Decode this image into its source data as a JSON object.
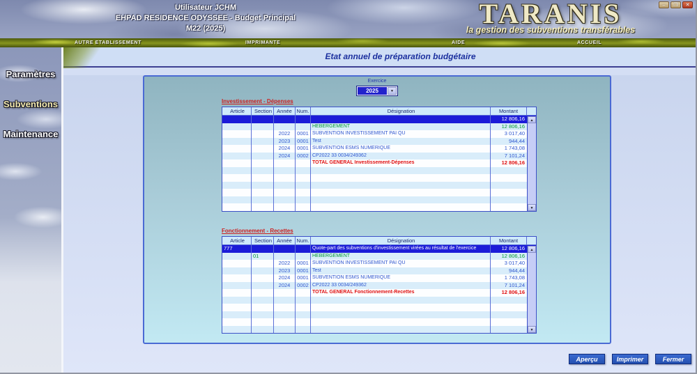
{
  "header": {
    "user": "Utilisateur JCHM",
    "establishment": "EHPAD RESIDENCE ODYSSEE - Budget Principal",
    "exercise_label": "M22 (2025)",
    "logo": "TARANIS",
    "logo_subtitle": "la gestion des subventions transférables",
    "window_controls": {
      "minimize": "–",
      "maximize": "❐",
      "close": "✕"
    }
  },
  "menu": {
    "items": [
      "AUTRE ETABLISSEMENT",
      "IMPRIMANTE",
      "AIDE",
      "ACCUEIL"
    ]
  },
  "sidebar": {
    "items": [
      "Paramètres",
      "Subventions",
      "Maintenance"
    ]
  },
  "page": {
    "title": "Etat annuel de préparation budgétaire"
  },
  "exercice": {
    "label": "Exercice",
    "value": "2025",
    "arrow": "▼"
  },
  "tables": [
    {
      "title": "Investissement - Dépenses",
      "columns": [
        "Article",
        "Section",
        "Année",
        "Num.",
        "Désignation",
        "Montant"
      ],
      "rows": [
        {
          "style": "sel",
          "article": "",
          "section": "",
          "annee": "",
          "num": "",
          "designation": "",
          "montant": "12 806,16"
        },
        {
          "style": "green",
          "article": "",
          "section": "",
          "annee": "",
          "num": "",
          "designation": "HEBERGEMENT",
          "montant": "12 806,16"
        },
        {
          "style": "",
          "article": "",
          "section": "",
          "annee": "2022",
          "num": "0001",
          "designation": "SUBVENTION INVESTISSEMENT PAI QU",
          "montant": "3 017,40"
        },
        {
          "style": "",
          "article": "",
          "section": "",
          "annee": "2023",
          "num": "0001",
          "designation": "Test",
          "montant": "944,44"
        },
        {
          "style": "",
          "article": "",
          "section": "",
          "annee": "2024",
          "num": "0001",
          "designation": "SUBVENTION ESMS NUMERIQUE",
          "montant": "1 743,08"
        },
        {
          "style": "",
          "article": "",
          "section": "",
          "annee": "2024",
          "num": "0002",
          "designation": "CP2022 33 0034/249362",
          "montant": "7 101,24"
        },
        {
          "style": "total",
          "article": "",
          "section": "",
          "annee": "",
          "num": "",
          "designation": "TOTAL GENERAL Investissement-Dépenses",
          "montant": "12 806,16"
        },
        {
          "style": "empty"
        },
        {
          "style": "empty"
        },
        {
          "style": "empty"
        },
        {
          "style": "empty"
        },
        {
          "style": "empty"
        },
        {
          "style": "empty"
        }
      ]
    },
    {
      "title": "Fonctionnement - Recettes",
      "columns": [
        "Article",
        "Section",
        "Année",
        "Num.",
        "Désignation",
        "Montant"
      ],
      "rows": [
        {
          "style": "sel",
          "article": "777",
          "section": "",
          "annee": "",
          "num": "",
          "designation": "Quote-part des subventions d'investissement virées au résultat de l'exercice",
          "montant": "12 806,16"
        },
        {
          "style": "green",
          "article": "",
          "section": "01",
          "annee": "",
          "num": "",
          "designation": "HEBERGEMENT",
          "montant": "12 806,16"
        },
        {
          "style": "",
          "article": "",
          "section": "",
          "annee": "2022",
          "num": "0001",
          "designation": "SUBVENTION INVESTISSEMENT PAI QU",
          "montant": "3 017,40"
        },
        {
          "style": "",
          "article": "",
          "section": "",
          "annee": "2023",
          "num": "0001",
          "designation": "Test",
          "montant": "944,44"
        },
        {
          "style": "",
          "article": "",
          "section": "",
          "annee": "2024",
          "num": "0001",
          "designation": "SUBVENTION ESMS NUMERIQUE",
          "montant": "1 743,08"
        },
        {
          "style": "",
          "article": "",
          "section": "",
          "annee": "2024",
          "num": "0002",
          "designation": "CP2022 33 0034/249362",
          "montant": "7 101,24"
        },
        {
          "style": "total",
          "article": "",
          "section": "",
          "annee": "",
          "num": "",
          "designation": "TOTAL GENERAL Fonctionnement-Recettes",
          "montant": "12 806,16"
        },
        {
          "style": "empty"
        },
        {
          "style": "empty"
        },
        {
          "style": "empty"
        },
        {
          "style": "empty"
        },
        {
          "style": "empty"
        }
      ]
    }
  ],
  "footer_buttons": [
    "Aperçu",
    "Imprimer",
    "Fermer"
  ],
  "colors": {
    "selected_row_bg": "#1c1cd8",
    "data_text_blue": "#2f56cf",
    "green_text": "#009933",
    "total_text_red": "#e01010",
    "section_title_red": "#cc2020",
    "panel_border": "#4a6ad4",
    "panel_bg_top": "#8fb4c0",
    "panel_bg_bottom": "#c2e9f3",
    "button_bg": "#2c5ac0",
    "logo_color": "#efe9c6"
  }
}
